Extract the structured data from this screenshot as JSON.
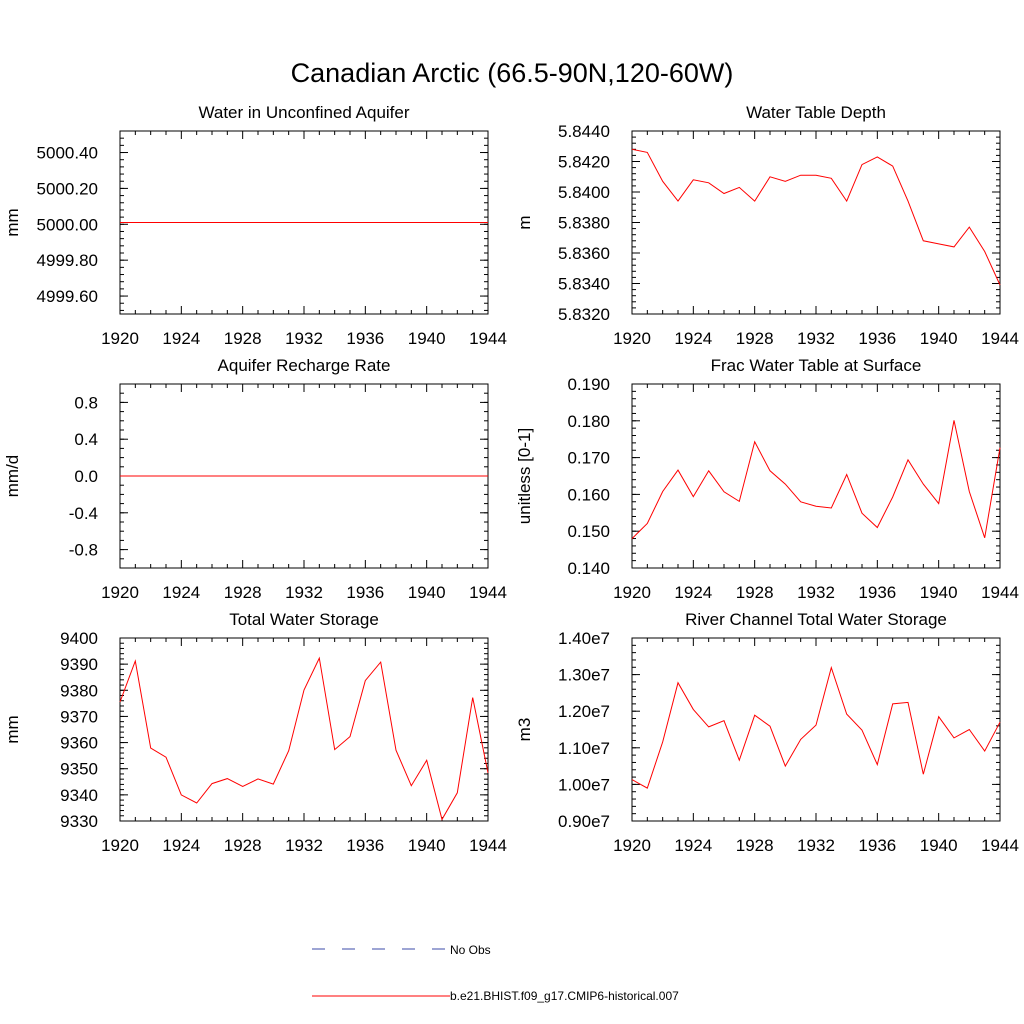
{
  "figure": {
    "title": "Canadian Arctic (66.5-90N,120-60W)",
    "legend": [
      {
        "label": "No Obs",
        "color": "#3b4ba8",
        "style": "dashed"
      },
      {
        "label": "b.e21.BHIST.f09_g17.CMIP6-historical.007",
        "color": "#ff0000",
        "style": "solid"
      }
    ]
  },
  "chart_data": [
    {
      "type": "line",
      "title": "Water in Unconfined Aquifer",
      "ylabel": "mm",
      "xlim": [
        1920,
        1944
      ],
      "ylim": [
        4999.5,
        5000.52
      ],
      "xticks": [
        1920,
        1924,
        1928,
        1932,
        1936,
        1940,
        1944
      ],
      "xtick_labels": [
        "1920",
        "1924",
        "1928",
        "1932",
        "1936",
        "1940",
        "1944"
      ],
      "yticks": [
        4999.6,
        4999.8,
        5000.0,
        5000.2,
        5000.4
      ],
      "ytick_labels": [
        "4999.60",
        "4999.80",
        "5000.00",
        "5000.20",
        "5000.40"
      ],
      "y_minor_step": 0.04,
      "series": [
        {
          "color": "#ff0000",
          "x": [
            1920,
            1921,
            1922,
            1923,
            1924,
            1925,
            1926,
            1927,
            1928,
            1929,
            1930,
            1931,
            1932,
            1933,
            1934,
            1935,
            1936,
            1937,
            1938,
            1939,
            1940,
            1941,
            1942,
            1943,
            1944
          ],
          "values": [
            5000.01,
            5000.01,
            5000.01,
            5000.01,
            5000.01,
            5000.01,
            5000.01,
            5000.01,
            5000.01,
            5000.01,
            5000.01,
            5000.01,
            5000.01,
            5000.01,
            5000.01,
            5000.01,
            5000.01,
            5000.01,
            5000.01,
            5000.01,
            5000.01,
            5000.01,
            5000.01,
            5000.01,
            5000.01
          ]
        }
      ]
    },
    {
      "type": "line",
      "title": "Water Table Depth",
      "ylabel": "m",
      "xlim": [
        1920,
        1944
      ],
      "ylim": [
        5.832,
        5.844
      ],
      "xticks": [
        1920,
        1924,
        1928,
        1932,
        1936,
        1940,
        1944
      ],
      "xtick_labels": [
        "1920",
        "1924",
        "1928",
        "1932",
        "1936",
        "1940",
        "1944"
      ],
      "yticks": [
        5.832,
        5.834,
        5.836,
        5.838,
        5.84,
        5.842,
        5.844
      ],
      "ytick_labels": [
        "5.8320",
        "5.8340",
        "5.8360",
        "5.8380",
        "5.8400",
        "5.8420",
        "5.8440"
      ],
      "y_minor_step": 0.0004,
      "series": [
        {
          "color": "#ff0000",
          "x": [
            1920,
            1921,
            1922,
            1923,
            1924,
            1925,
            1926,
            1927,
            1928,
            1929,
            1930,
            1931,
            1932,
            1933,
            1934,
            1935,
            1936,
            1937,
            1938,
            1939,
            1940,
            1941,
            1942,
            1943,
            1944
          ],
          "values": [
            5.8428,
            5.8426,
            5.8407,
            5.8394,
            5.8408,
            5.8406,
            5.8399,
            5.8403,
            5.8394,
            5.841,
            5.8407,
            5.8411,
            5.8411,
            5.8409,
            5.8394,
            5.8418,
            5.8423,
            5.8417,
            5.8394,
            5.8368,
            5.8366,
            5.8364,
            5.8377,
            5.8361,
            5.8339
          ]
        }
      ]
    },
    {
      "type": "line",
      "title": "Aquifer Recharge Rate",
      "ylabel": "mm/d",
      "xlim": [
        1920,
        1944
      ],
      "ylim": [
        -1.0,
        1.0
      ],
      "xticks": [
        1920,
        1924,
        1928,
        1932,
        1936,
        1940,
        1944
      ],
      "xtick_labels": [
        "1920",
        "1924",
        "1928",
        "1932",
        "1936",
        "1940",
        "1944"
      ],
      "yticks": [
        -0.8,
        -0.4,
        0.0,
        0.4,
        0.8
      ],
      "ytick_labels": [
        "-0.8",
        "-0.4",
        "0.0",
        "0.4",
        "0.8"
      ],
      "y_minor_step": 0.1,
      "series": [
        {
          "color": "#ff0000",
          "x": [
            1920,
            1921,
            1922,
            1923,
            1924,
            1925,
            1926,
            1927,
            1928,
            1929,
            1930,
            1931,
            1932,
            1933,
            1934,
            1935,
            1936,
            1937,
            1938,
            1939,
            1940,
            1941,
            1942,
            1943,
            1944
          ],
          "values": [
            0,
            0,
            0,
            0,
            0,
            0,
            0,
            0,
            0,
            0,
            0,
            0,
            0,
            0,
            0,
            0,
            0,
            0,
            0,
            0,
            0,
            0,
            0,
            0,
            0
          ]
        }
      ]
    },
    {
      "type": "line",
      "title": "Frac Water Table at Surface",
      "ylabel": "unitless [0-1]",
      "xlim": [
        1920,
        1944
      ],
      "ylim": [
        0.14,
        0.19
      ],
      "xticks": [
        1920,
        1924,
        1928,
        1932,
        1936,
        1940,
        1944
      ],
      "xtick_labels": [
        "1920",
        "1924",
        "1928",
        "1932",
        "1936",
        "1940",
        "1944"
      ],
      "yticks": [
        0.14,
        0.15,
        0.16,
        0.17,
        0.18,
        0.19
      ],
      "ytick_labels": [
        "0.140",
        "0.150",
        "0.160",
        "0.170",
        "0.180",
        "0.190"
      ],
      "y_minor_step": 0.002,
      "series": [
        {
          "color": "#ff0000",
          "x": [
            1920,
            1921,
            1922,
            1923,
            1924,
            1925,
            1926,
            1927,
            1928,
            1929,
            1930,
            1931,
            1932,
            1933,
            1934,
            1935,
            1936,
            1937,
            1938,
            1939,
            1940,
            1941,
            1942,
            1943,
            1944
          ],
          "values": [
            0.148,
            0.1521,
            0.1608,
            0.1666,
            0.1594,
            0.1664,
            0.1607,
            0.1581,
            0.1743,
            0.1664,
            0.1628,
            0.158,
            0.1568,
            0.1563,
            0.1654,
            0.1549,
            0.151,
            0.1593,
            0.1694,
            0.1628,
            0.1575,
            0.1801,
            0.1608,
            0.1482,
            0.1727
          ]
        }
      ]
    },
    {
      "type": "line",
      "title": "Total Water Storage",
      "ylabel": "mm",
      "xlim": [
        1920,
        1944
      ],
      "ylim": [
        9330,
        9400
      ],
      "xticks": [
        1920,
        1924,
        1928,
        1932,
        1936,
        1940,
        1944
      ],
      "xtick_labels": [
        "1920",
        "1924",
        "1928",
        "1932",
        "1936",
        "1940",
        "1944"
      ],
      "yticks": [
        9330,
        9340,
        9350,
        9360,
        9370,
        9380,
        9390,
        9400
      ],
      "ytick_labels": [
        "9330",
        "9340",
        "9350",
        "9360",
        "9370",
        "9380",
        "9390",
        "9400"
      ],
      "y_minor_step": 2,
      "series": [
        {
          "color": "#ff0000",
          "x": [
            1920,
            1921,
            1922,
            1923,
            1924,
            1925,
            1926,
            1927,
            1928,
            1929,
            1930,
            1931,
            1932,
            1933,
            1934,
            1935,
            1936,
            1937,
            1938,
            1939,
            1940,
            1941,
            1942,
            1943,
            1944
          ],
          "values": [
            9375.5,
            9391.2,
            9357.9,
            9354.4,
            9340,
            9336.9,
            9344.3,
            9346.2,
            9343.2,
            9346.1,
            9344.1,
            9356.9,
            9380.1,
            9392.3,
            9357.3,
            9362.3,
            9383.7,
            9390.8,
            9357.1,
            9343.5,
            9353.2,
            9330.6,
            9340.8,
            9377.2,
            9348.4
          ]
        }
      ]
    },
    {
      "type": "line",
      "title": "River Channel Total Water Storage",
      "ylabel": "m3",
      "xlim": [
        1920,
        1944
      ],
      "ylim": [
        9000000,
        14000000
      ],
      "xticks": [
        1920,
        1924,
        1928,
        1932,
        1936,
        1940,
        1944
      ],
      "xtick_labels": [
        "1920",
        "1924",
        "1928",
        "1932",
        "1936",
        "1940",
        "1944"
      ],
      "yticks": [
        9000000,
        10000000,
        11000000,
        12000000,
        13000000,
        14000000
      ],
      "ytick_labels": [
        "0.90e7",
        "1.00e7",
        "1.10e7",
        "1.20e7",
        "1.30e7",
        "1.40e7"
      ],
      "y_minor_step": 200000,
      "series": [
        {
          "color": "#ff0000",
          "x": [
            1920,
            1921,
            1922,
            1923,
            1924,
            1925,
            1926,
            1927,
            1928,
            1929,
            1930,
            1931,
            1932,
            1933,
            1934,
            1935,
            1936,
            1937,
            1938,
            1939,
            1940,
            1941,
            1942,
            1943,
            1944
          ],
          "values": [
            10130000,
            9900000,
            11160000,
            12780000,
            12050000,
            11570000,
            11740000,
            10660000,
            11890000,
            11590000,
            10500000,
            11230000,
            11620000,
            13190000,
            11920000,
            11480000,
            10540000,
            12200000,
            12240000,
            10280000,
            11850000,
            11270000,
            11500000,
            10910000,
            11700000
          ]
        }
      ]
    }
  ]
}
